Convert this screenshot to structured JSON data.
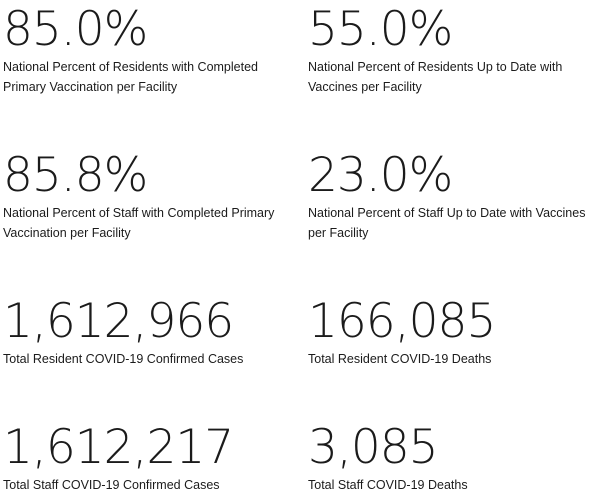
{
  "stats": [
    {
      "value": "85.0%",
      "label": "National Percent of Residents with Completed Primary Vaccination per Facility"
    },
    {
      "value": "55.0%",
      "label": "National Percent of Residents Up to Date with Vaccines per Facility"
    },
    {
      "value": "85.8%",
      "label": "National Percent of Staff with Completed Primary Vaccination per Facility"
    },
    {
      "value": "23.0%",
      "label": "National Percent of Staff Up to Date with Vaccines per Facility"
    },
    {
      "value": "1,612,966",
      "label": "Total Resident COVID-19 Confirmed Cases"
    },
    {
      "value": "166,085",
      "label": "Total Resident COVID-19 Deaths"
    },
    {
      "value": "1,612,217",
      "label": "Total Staff COVID-19 Confirmed Cases"
    },
    {
      "value": "3,085",
      "label": "Total Staff COVID-19 Deaths"
    }
  ]
}
